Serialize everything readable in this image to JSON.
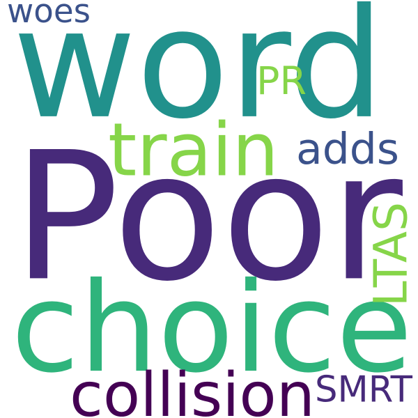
{
  "words": [
    {
      "text": "word",
      "color": "#21918c"
    },
    {
      "text": "Poor",
      "color": "#472a7a"
    },
    {
      "text": "choice",
      "color": "#2fb47c"
    },
    {
      "text": "train",
      "color": "#86d549"
    },
    {
      "text": "adds",
      "color": "#3b528b"
    },
    {
      "text": "PR",
      "color": "#86d549"
    },
    {
      "text": "woes",
      "color": "#3b528b"
    },
    {
      "text": "LTAS",
      "color": "#86d549"
    },
    {
      "text": "collision",
      "color": "#440154"
    },
    {
      "text": "SMRT",
      "color": "#472a7a"
    }
  ]
}
